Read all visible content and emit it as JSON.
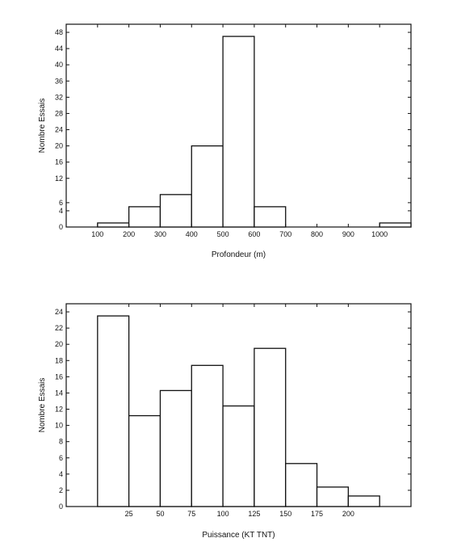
{
  "chart_data": [
    {
      "type": "bar",
      "histogram": true,
      "xlabel": "Profondeur (m)",
      "ylabel": "Nombre Essais",
      "ylim": [
        0,
        50
      ],
      "yticks": [
        0,
        4,
        6,
        12,
        16,
        20,
        24,
        28,
        32,
        36,
        40,
        44,
        48
      ],
      "xticks": [
        "100",
        "200",
        "300",
        "400",
        "500",
        "600",
        "700",
        "800",
        "900",
        "1000"
      ],
      "bins": [
        {
          "from": 100,
          "to": 200,
          "value": 1
        },
        {
          "from": 200,
          "to": 300,
          "value": 5
        },
        {
          "from": 300,
          "to": 400,
          "value": 8
        },
        {
          "from": 400,
          "to": 500,
          "value": 20
        },
        {
          "from": 500,
          "to": 600,
          "value": 47
        },
        {
          "from": 600,
          "to": 700,
          "value": 5
        },
        {
          "from": 1000,
          "to": 1100,
          "value": 1
        }
      ]
    },
    {
      "type": "bar",
      "histogram": true,
      "xlabel": "Puissance (KT TNT)",
      "ylabel": "Nombre Essais",
      "ylim": [
        0,
        25
      ],
      "yticks": [
        0,
        2,
        4,
        6,
        8,
        10,
        12,
        14,
        16,
        18,
        20,
        22,
        24
      ],
      "xticks": [
        "25",
        "50",
        "75",
        "100",
        "125",
        "150",
        "175",
        "200"
      ],
      "bins": [
        {
          "from": 0,
          "to": 25,
          "value": 23.5
        },
        {
          "from": 25,
          "to": 50,
          "value": 11.2
        },
        {
          "from": 50,
          "to": 75,
          "value": 14.3
        },
        {
          "from": 75,
          "to": 100,
          "value": 17.4
        },
        {
          "from": 100,
          "to": 125,
          "value": 12.4
        },
        {
          "from": 125,
          "to": 150,
          "value": 19.5
        },
        {
          "from": 150,
          "to": 175,
          "value": 5.3
        },
        {
          "from": 175,
          "to": 200,
          "value": 2.4
        },
        {
          "from": 200,
          "to": 225,
          "value": 1.3
        }
      ]
    }
  ]
}
